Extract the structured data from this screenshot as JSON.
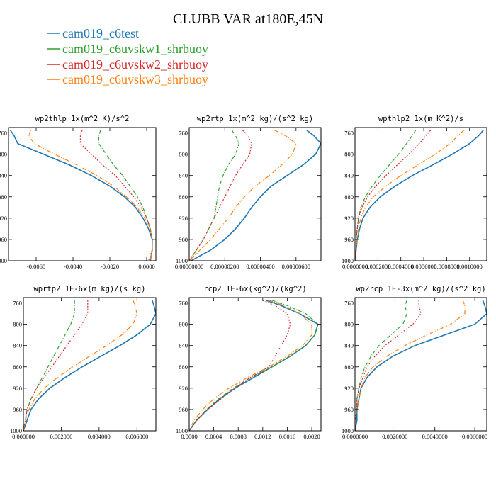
{
  "figure": {
    "title": "CLUBB VAR at180E,45N",
    "legend": [
      {
        "name": "cam019_c6test",
        "color": "#1f77b4"
      },
      {
        "name": "cam019_c6uvskw1_shrbuoy",
        "color": "#2ca02c"
      },
      {
        "name": "cam019_c6uvskw2_shrbuoy",
        "color": "#d62728"
      },
      {
        "name": "cam019_c6uvskw3_shrbuoy",
        "color": "#ff7f0e"
      }
    ]
  },
  "chart_data": [
    {
      "type": "line",
      "title": "wp2thlp  1x(m^2 K)/s^2",
      "xlim": [
        -0.0075,
        0.0005
      ],
      "ylim": [
        1000,
        750
      ],
      "ygrid": false,
      "xticks": [
        -0.006,
        -0.004,
        -0.002,
        0.0
      ],
      "xticklabels": [
        "-0.0060",
        "-0.0040",
        "-0.0020",
        "0.0000"
      ],
      "yticks": [
        760,
        800,
        840,
        880,
        920,
        960,
        1000
      ],
      "y": [
        755,
        765,
        780,
        800,
        820,
        840,
        860,
        880,
        900,
        920,
        940,
        960,
        980,
        1000
      ],
      "series": [
        {
          "name": "cam019_c6test",
          "x": [
            -0.0074,
            -0.0072,
            -0.007,
            -0.0056,
            -0.0042,
            -0.003,
            -0.002,
            -0.0012,
            -0.0006,
            -0.0002,
            0.0001,
            0.0003,
            0.0003,
            0.0002
          ]
        },
        {
          "name": "cam019_c6uvskw1_shrbuoy",
          "x": [
            -0.0025,
            -0.0026,
            -0.0026,
            -0.0022,
            -0.0018,
            -0.0013,
            -0.0009,
            -0.0005,
            -0.0002,
            0.0,
            0.0002,
            0.0003,
            0.0003,
            0.0002
          ]
        },
        {
          "name": "cam019_c6uvskw2_shrbuoy",
          "x": [
            -0.0035,
            -0.0036,
            -0.0036,
            -0.003,
            -0.0024,
            -0.0017,
            -0.0012,
            -0.0007,
            -0.0003,
            0.0,
            0.0002,
            0.0003,
            0.0003,
            0.0001
          ]
        },
        {
          "name": "cam019_c6uvskw3_shrbuoy",
          "x": [
            -0.0063,
            -0.0064,
            -0.0061,
            -0.005,
            -0.0038,
            -0.0027,
            -0.0018,
            -0.0011,
            -0.0005,
            -0.0001,
            0.0002,
            0.0003,
            0.0003,
            0.0002
          ]
        }
      ]
    },
    {
      "type": "line",
      "title": "wp2rtp  1x(m^2 kg)/(s^2 kg)",
      "xlim": [
        0.0,
        7.4e-06
      ],
      "ylim": [
        1000,
        750
      ],
      "xticks": [
        0.0,
        2e-06,
        4e-06,
        6e-06
      ],
      "xticklabels": [
        "0.00000000",
        "0.00000200",
        "0.00000400",
        "0.00000600"
      ],
      "yticks": [
        760,
        800,
        840,
        880,
        920,
        960,
        1000
      ],
      "y": [
        755,
        765,
        780,
        800,
        820,
        840,
        860,
        880,
        900,
        920,
        940,
        960,
        980,
        1000
      ],
      "series": [
        {
          "name": "cam019_c6test",
          "x": [
            6.6e-06,
            7e-06,
            7.4e-06,
            7.1e-06,
            6.4e-06,
            5.5e-06,
            4.6e-06,
            4e-06,
            3.5e-06,
            3.1e-06,
            2.6e-06,
            2e-06,
            1.2e-06,
            1e-07
          ]
        },
        {
          "name": "cam019_c6uvskw1_shrbuoy",
          "x": [
            2.4e-06,
            2.6e-06,
            2.8e-06,
            2.6e-06,
            2.2e-06,
            1.9e-06,
            1.7e-06,
            1.6e-06,
            1.5e-06,
            1.4e-06,
            1.1e-06,
            8e-07,
            4e-07,
            0.0
          ]
        },
        {
          "name": "cam019_c6uvskw2_shrbuoy",
          "x": [
            3e-06,
            3.3e-06,
            3.5e-06,
            3.4e-06,
            3e-06,
            2.6e-06,
            2.3e-06,
            2e-06,
            1.7e-06,
            1.4e-06,
            1.1e-06,
            8e-07,
            4e-07,
            0.0
          ]
        },
        {
          "name": "cam019_c6uvskw3_shrbuoy",
          "x": [
            4.8e-06,
            5.4e-06,
            6e-06,
            5.8e-06,
            5.2e-06,
            4.5e-06,
            3.7e-06,
            3.1e-06,
            2.6e-06,
            2.2e-06,
            1.7e-06,
            1.2e-06,
            6e-07,
            0.0
          ]
        }
      ]
    },
    {
      "type": "line",
      "title": "wpthlp2  1x(m K^2)/s",
      "xlim": [
        0.0,
        0.00115
      ],
      "ylim": [
        1000,
        750
      ],
      "xticks": [
        0.0,
        0.0002,
        0.0004,
        0.0006,
        0.0008,
        0.001
      ],
      "xticklabels": [
        "0.0000000",
        "0.0002000",
        "0.0004000",
        "0.0006000",
        "0.0008000",
        "0.0010000"
      ],
      "yticks": [
        760,
        800,
        840,
        880,
        920,
        960,
        1000
      ],
      "y": [
        755,
        765,
        780,
        800,
        820,
        840,
        860,
        880,
        900,
        920,
        940,
        960,
        980,
        1000
      ],
      "series": [
        {
          "name": "cam019_c6test",
          "x": [
            0.00112,
            0.00108,
            0.001,
            0.00085,
            0.00068,
            0.0005,
            0.00035,
            0.00022,
            0.00013,
            7e-05,
            4e-05,
            2e-05,
            1e-05,
            0.0
          ]
        },
        {
          "name": "cam019_c6uvskw1_shrbuoy",
          "x": [
            0.00053,
            0.0005,
            0.00045,
            0.00038,
            0.0003,
            0.00022,
            0.00015,
            9e-05,
            5e-05,
            3e-05,
            2e-05,
            1e-05,
            1e-05,
            0.0
          ]
        },
        {
          "name": "cam019_c6uvskw2_shrbuoy",
          "x": [
            0.00066,
            0.00062,
            0.00056,
            0.00047,
            0.00037,
            0.00027,
            0.00018,
            0.00011,
            6e-05,
            3e-05,
            2e-05,
            1e-05,
            1e-05,
            0.0
          ]
        },
        {
          "name": "cam019_c6uvskw3_shrbuoy",
          "x": [
            0.00095,
            0.0009,
            0.00083,
            0.0007,
            0.00055,
            0.0004,
            0.00027,
            0.00016,
            9e-05,
            5e-05,
            3e-05,
            2e-05,
            1e-05,
            0.0
          ]
        }
      ]
    },
    {
      "type": "line",
      "title": "wprtp2  1E-6x(m kg)/(s kg)",
      "xlim": [
        0.0,
        0.007
      ],
      "ylim": [
        1000,
        750
      ],
      "xticks": [
        0.0,
        0.002,
        0.004,
        0.006
      ],
      "xticklabels": [
        "0.000000",
        "0.002000",
        "0.004000",
        "0.006000"
      ],
      "yticks": [
        760,
        800,
        840,
        880,
        920,
        960,
        1000
      ],
      "y": [
        755,
        765,
        780,
        800,
        820,
        840,
        860,
        880,
        900,
        920,
        940,
        960,
        980,
        1000
      ],
      "series": [
        {
          "name": "cam019_c6test",
          "x": [
            0.0068,
            0.0069,
            0.007,
            0.0067,
            0.006,
            0.0051,
            0.0041,
            0.0031,
            0.0022,
            0.0014,
            0.0008,
            0.0004,
            0.0002,
            0.0
          ]
        },
        {
          "name": "cam019_c6uvskw1_shrbuoy",
          "x": [
            0.0027,
            0.0027,
            0.0027,
            0.0025,
            0.0022,
            0.0019,
            0.0016,
            0.0013,
            0.001,
            0.0007,
            0.0004,
            0.0002,
            0.0001,
            0.0
          ]
        },
        {
          "name": "cam019_c6uvskw2_shrbuoy",
          "x": [
            0.0034,
            0.0034,
            0.0034,
            0.0031,
            0.0027,
            0.0023,
            0.0019,
            0.0015,
            0.0011,
            0.0007,
            0.0004,
            0.0002,
            0.0001,
            0.0
          ]
        },
        {
          "name": "cam019_c6uvskw3_shrbuoy",
          "x": [
            0.0058,
            0.0059,
            0.006,
            0.0058,
            0.0052,
            0.0044,
            0.0035,
            0.0026,
            0.0018,
            0.0011,
            0.0006,
            0.0003,
            0.0001,
            0.0
          ]
        }
      ]
    },
    {
      "type": "line",
      "title": "rcp2  1E-6x(kg^2)/(kg^2)",
      "xlim": [
        0.0,
        0.00215
      ],
      "ylim": [
        1000,
        750
      ],
      "xticks": [
        0.0,
        0.0004,
        0.0008,
        0.0012,
        0.0016,
        0.002
      ],
      "xticklabels": [
        "0.0000",
        "0.0004",
        "0.0008",
        "0.0012",
        "0.0016",
        "0.0020"
      ],
      "yticks": [
        760,
        800,
        840,
        880,
        920,
        960,
        1000
      ],
      "y": [
        755,
        765,
        780,
        800,
        820,
        840,
        860,
        880,
        900,
        920,
        940,
        960,
        980,
        1000
      ],
      "series": [
        {
          "name": "cam019_c6test",
          "x": [
            0.00125,
            0.0015,
            0.0018,
            0.0021,
            0.00205,
            0.0019,
            0.00165,
            0.00135,
            0.00105,
            0.00075,
            0.0005,
            0.0003,
            0.00012,
            0.0
          ]
        },
        {
          "name": "cam019_c6uvskw1_shrbuoy",
          "x": [
            0.00135,
            0.0016,
            0.0019,
            0.0021,
            0.00205,
            0.0019,
            0.00165,
            0.00135,
            0.001,
            0.00072,
            0.00048,
            0.00028,
            0.00012,
            0.0
          ]
        },
        {
          "name": "cam019_c6uvskw2_shrbuoy",
          "x": [
            0.0012,
            0.0014,
            0.0016,
            0.00165,
            0.0016,
            0.0015,
            0.0014,
            0.0013,
            0.001,
            0.00075,
            0.00052,
            0.0003,
            0.00013,
            0.0
          ]
        },
        {
          "name": "cam019_c6uvskw3_shrbuoy",
          "x": [
            0.0013,
            0.00155,
            0.0018,
            0.002,
            0.002,
            0.00185,
            0.0016,
            0.0013,
            0.00095,
            0.00065,
            0.0004,
            0.00022,
            8e-05,
            0.0
          ]
        }
      ]
    },
    {
      "type": "line",
      "title": "wp2rcp  1E-3x(m^2 kg)/(s^2 kg)",
      "xlim": [
        0.0,
        0.0066
      ],
      "ylim": [
        1000,
        750
      ],
      "xticks": [
        0.0,
        0.002,
        0.004,
        0.006
      ],
      "xticklabels": [
        "0.0000000",
        "0.0020000",
        "0.0040000",
        "0.0060000"
      ],
      "yticks": [
        760,
        800,
        840,
        880,
        920,
        960,
        1000
      ],
      "y": [
        755,
        765,
        780,
        800,
        820,
        840,
        860,
        880,
        900,
        920,
        940,
        960,
        980,
        1000
      ],
      "series": [
        {
          "name": "cam019_c6test",
          "x": [
            0.0064,
            0.0065,
            0.0066,
            0.006,
            0.0045,
            0.003,
            0.0019,
            0.0011,
            0.0006,
            0.0003,
            0.0002,
            0.0001,
            0.0001,
            0.0
          ]
        },
        {
          "name": "cam019_c6uvskw1_shrbuoy",
          "x": [
            0.0026,
            0.0025,
            0.0026,
            0.0024,
            0.0018,
            0.0012,
            0.0008,
            0.0005,
            0.0003,
            0.0002,
            0.0001,
            0.0001,
            0.0,
            0.0
          ]
        },
        {
          "name": "cam019_c6uvskw2_shrbuoy",
          "x": [
            0.0032,
            0.0032,
            0.0033,
            0.0029,
            0.0022,
            0.0015,
            0.001,
            0.0006,
            0.0004,
            0.0002,
            0.0001,
            0.0001,
            0.0,
            0.0
          ]
        },
        {
          "name": "cam019_c6uvskw3_shrbuoy",
          "x": [
            0.0054,
            0.0055,
            0.0055,
            0.0048,
            0.0036,
            0.0025,
            0.0016,
            0.0009,
            0.0005,
            0.0003,
            0.0002,
            0.0001,
            0.0,
            0.0
          ]
        }
      ]
    }
  ]
}
